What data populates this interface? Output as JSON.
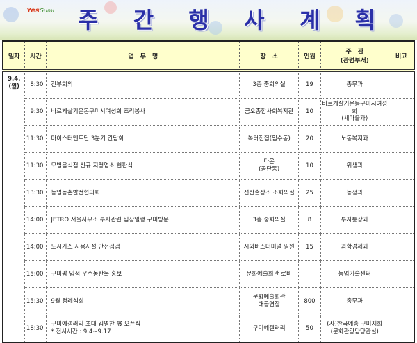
{
  "banner": {
    "logo_text": "Yes",
    "logo_sub": "Gumi",
    "title_chars": [
      "주",
      "간",
      "행",
      "사",
      "계",
      "획"
    ]
  },
  "table": {
    "headers": {
      "date": "일자",
      "time": "시간",
      "task": "업　무　명",
      "place": "장　소",
      "people": "인원",
      "host_line1": "주　관",
      "host_line2": "(관련부서)",
      "note": "비고"
    },
    "date_line1": "9.4.",
    "date_line2": "(월)",
    "rows": [
      {
        "time": "8:30",
        "task": "간부회의",
        "task2": "",
        "place": "3층 중회의실",
        "place2": "",
        "people": "19",
        "host": "총무과",
        "host2": "",
        "note": ""
      },
      {
        "time": "9:30",
        "task": "바르게살기운동구미시여성회 조리봉사",
        "task2": "",
        "place": "금오종합사회복지관",
        "place2": "",
        "people": "10",
        "host": "바르게살기운동구미시여성회",
        "host2": "(새마을과)",
        "note": ""
      },
      {
        "time": "11:30",
        "task": "마이스터멘토단 3분기 간담회",
        "task2": "",
        "place": "복터진집(임수동)",
        "place2": "",
        "people": "20",
        "host": "노동복지과",
        "host2": "",
        "note": ""
      },
      {
        "time": "11:30",
        "task": "모범음식점 신규 지정업소 현판식",
        "task2": "",
        "place": "다온",
        "place2": "(공단동)",
        "people": "10",
        "host": "위생과",
        "host2": "",
        "note": ""
      },
      {
        "time": "13:30",
        "task": "농업농촌발전협의회",
        "task2": "",
        "place": "선산출장소 소회의실",
        "place2": "",
        "people": "25",
        "host": "농정과",
        "host2": "",
        "note": ""
      },
      {
        "time": "14:00",
        "task": "JETRO 서울사무소 투자관련 팀장일행 구미방문",
        "task2": "",
        "place": "3층 중회의실",
        "place2": "",
        "people": "8",
        "host": "투자통상과",
        "host2": "",
        "note": ""
      },
      {
        "time": "14:00",
        "task": "도시가스 사용시설 안전점검",
        "task2": "",
        "place": "시외버스터미널 일원",
        "place2": "",
        "people": "15",
        "host": "과학경제과",
        "host2": "",
        "note": ""
      },
      {
        "time": "15:00",
        "task": "구미팜 입점 우수농산물 홍보",
        "task2": "",
        "place": "문화예술회관 로비",
        "place2": "",
        "people": "",
        "host": "농업기술센터",
        "host2": "",
        "note": ""
      },
      {
        "time": "15:30",
        "task": "9월 정례석회",
        "task2": "",
        "place": "문화예술회관",
        "place2": "대공연장",
        "people": "800",
        "host": "총무과",
        "host2": "",
        "note": ""
      },
      {
        "time": "18:30",
        "task": "구미예갤러리 초대 김영찬 展 오픈식",
        "task2": "* 전시시간 : 9.4~9.17",
        "place": "구미예갤러리",
        "place2": "",
        "people": "50",
        "host": "(사)한국예총 구미지회",
        "host2": "(문화관광담당관실)",
        "note": ""
      }
    ]
  }
}
